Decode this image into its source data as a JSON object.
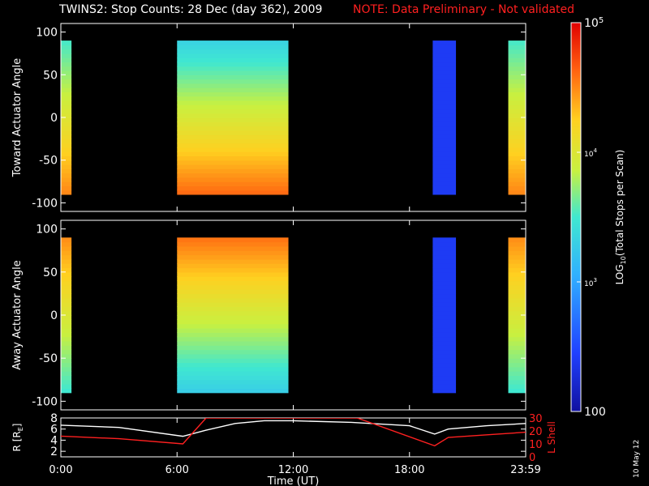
{
  "title": "TWINS2: Stop Counts: 28 Dec (day 362), 2009",
  "note": "NOTE: Data Preliminary - Not validated",
  "stamp": "10 May 12",
  "chart_data": [
    {
      "type": "heatmap",
      "ylabel": "Toward Actuator Angle",
      "ylim": [
        -110,
        110
      ],
      "yticks": [
        100,
        50,
        0,
        -50,
        -100
      ],
      "xlim": [
        0,
        24
      ],
      "data_blocks": [
        {
          "t_start": 0.0,
          "t_end": 0.55,
          "angle_min": -90,
          "angle_max": 90,
          "log_counts_high_angle": 3.5,
          "log_counts_low_angle": 4.5
        },
        {
          "t_start": 6.0,
          "t_end": 11.75,
          "angle_min": -90,
          "angle_max": 90,
          "log_counts_high_angle": 3.3,
          "log_counts_low_angle": 4.6
        },
        {
          "t_start": 19.2,
          "t_end": 20.4,
          "angle_min": -90,
          "angle_max": 90,
          "log_counts_high_angle": 2.4,
          "log_counts_low_angle": 2.4
        },
        {
          "t_start": 23.1,
          "t_end": 23.98,
          "angle_min": -90,
          "angle_max": 90,
          "log_counts_high_angle": 3.5,
          "log_counts_low_angle": 4.5
        }
      ]
    },
    {
      "type": "heatmap",
      "ylabel": "Away Actuator Angle",
      "ylim": [
        -110,
        110
      ],
      "yticks": [
        100,
        50,
        0,
        -50,
        -100
      ],
      "xlim": [
        0,
        24
      ],
      "data_blocks": [
        {
          "t_start": 0.0,
          "t_end": 0.55,
          "angle_min": -90,
          "angle_max": 90,
          "log_counts_high_angle": 4.5,
          "log_counts_low_angle": 3.5
        },
        {
          "t_start": 6.0,
          "t_end": 11.75,
          "angle_min": -90,
          "angle_max": 90,
          "log_counts_high_angle": 4.6,
          "log_counts_low_angle": 3.3
        },
        {
          "t_start": 19.2,
          "t_end": 20.4,
          "angle_min": -90,
          "angle_max": 90,
          "log_counts_high_angle": 2.4,
          "log_counts_low_angle": 2.4
        },
        {
          "t_start": 23.1,
          "t_end": 23.98,
          "angle_min": -90,
          "angle_max": 90,
          "log_counts_high_angle": 4.5,
          "log_counts_low_angle": 3.5
        }
      ]
    },
    {
      "type": "line",
      "ylabel": "R [R",
      "ylabel_sub": "E",
      "ylabel_close": "]",
      "ylim": [
        1,
        8
      ],
      "yticks": [
        8,
        6,
        4,
        2
      ],
      "y2label": "L Shell",
      "y2lim": [
        0,
        30
      ],
      "y2ticks": [
        30,
        20,
        10,
        0
      ],
      "xlabel": "Time (UT)",
      "xlim": [
        0,
        24
      ],
      "xticks": [
        0,
        6,
        12,
        18,
        24
      ],
      "xticklabels": [
        "0:00",
        "6:00",
        "12:00",
        "18:00",
        "23:59"
      ],
      "series": [
        {
          "color": "#ffffff",
          "axis": "left",
          "x": [
            0,
            3,
            6.3,
            7.5,
            9,
            10.5,
            12,
            15,
            18,
            19.3,
            20,
            22,
            24
          ],
          "y": [
            6.7,
            6.3,
            4.7,
            5.8,
            7.0,
            7.5,
            7.5,
            7.2,
            6.6,
            5.1,
            6.0,
            6.6,
            7.0
          ]
        },
        {
          "color": "#ff2020",
          "axis": "right",
          "x": [
            0,
            3,
            6.3,
            7.5,
            15.3,
            19.3,
            20,
            22,
            24
          ],
          "y": [
            16,
            14,
            10,
            30,
            30,
            8.5,
            15,
            17,
            19
          ]
        }
      ]
    }
  ],
  "colorbar": {
    "label": "LOG",
    "label_sub": "10",
    "label_rest": "(Total Stops per Scan)",
    "min": 100,
    "max": 100000,
    "ticks": [
      {
        "value": 100000,
        "base": "10",
        "exp": "5",
        "major": true
      },
      {
        "value": 10000,
        "base": "10",
        "exp": "4",
        "major": false
      },
      {
        "value": 1000,
        "base": "10",
        "exp": "3",
        "major": false
      },
      {
        "value": 100,
        "base": "100",
        "exp": "",
        "major": true
      }
    ]
  }
}
